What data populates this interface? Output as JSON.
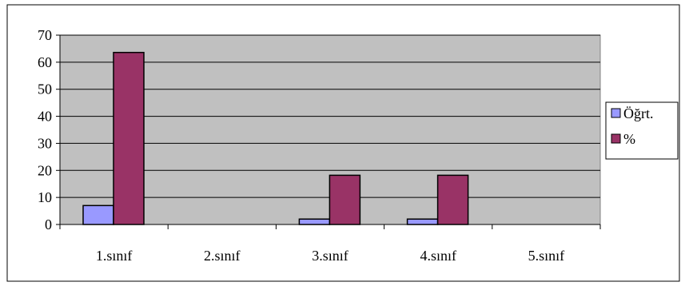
{
  "chart_data": {
    "type": "bar",
    "categories": [
      "1.sınıf",
      "2.sınıf",
      "3.sınıf",
      "4.sınıf",
      "5.sınıf"
    ],
    "series": [
      {
        "name": "Öğrt.",
        "values": [
          7,
          0,
          2,
          2,
          0
        ],
        "color": "#9999ff"
      },
      {
        "name": "%",
        "values": [
          63.6,
          0,
          18.2,
          18.2,
          0
        ],
        "color": "#993366"
      }
    ],
    "ylim": [
      0,
      70
    ],
    "yticks": [
      "0",
      "10",
      "20",
      "30",
      "40",
      "50",
      "60",
      "70"
    ],
    "grid": true,
    "plot_background": "#c0c0c0",
    "legend_position": "right"
  }
}
